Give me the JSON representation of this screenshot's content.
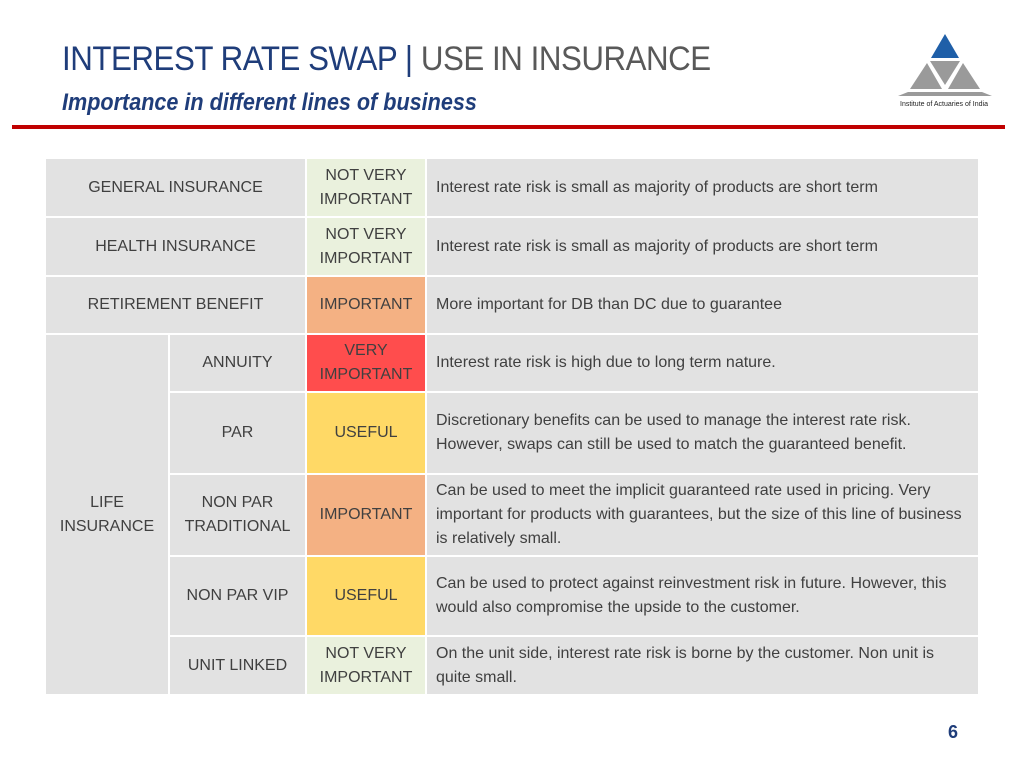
{
  "header": {
    "title_main": "INTEREST RATE SWAP | ",
    "title_sub": "USE IN INSURANCE",
    "subtitle": "Importance in different lines of business",
    "logo_caption": "Institute of Actuaries of India"
  },
  "colors": {
    "title_blue": "#1f3d7a",
    "rule_red": "#c00000",
    "not_very_important": "#eaf1dd",
    "important": "#f4b183",
    "very_important": "#ff4d4d",
    "useful": "#ffd966",
    "cell_grey": "#e2e2e2"
  },
  "table": {
    "general": {
      "lob": "GENERAL INSURANCE",
      "importance": "NOT VERY IMPORTANT",
      "comment": "Interest rate risk is small as majority of products are short term"
    },
    "health": {
      "lob": "HEALTH INSURANCE",
      "importance": "NOT VERY IMPORTANT",
      "comment": "Interest rate risk is small as majority of products are short term"
    },
    "retirement": {
      "lob": "RETIREMENT BENEFIT",
      "importance": "IMPORTANT",
      "comment": "More important for DB than DC due to guarantee"
    },
    "life": {
      "lob": "LIFE INSURANCE",
      "annuity": {
        "product": "ANNUITY",
        "importance": "VERY IMPORTANT",
        "comment": "Interest rate risk is high due to long term nature."
      },
      "par": {
        "product": "PAR",
        "importance": "USEFUL",
        "comment": "Discretionary benefits can be used to manage the interest rate risk. However, swaps can still be used to match the guaranteed benefit."
      },
      "nonpar_trad": {
        "product": "NON PAR TRADITIONAL",
        "importance": "IMPORTANT",
        "comment": "Can be used to meet the implicit guaranteed rate used in pricing. Very important for products with guarantees, but the size of this line of business is relatively small."
      },
      "nonpar_vip": {
        "product": "NON PAR VIP",
        "importance": "USEFUL",
        "comment": "Can be used to protect against reinvestment risk in future. However, this would also compromise the upside to the customer."
      },
      "unit_linked": {
        "product": "UNIT LINKED",
        "importance": "NOT VERY IMPORTANT",
        "comment": "On the unit side, interest rate risk is borne by the customer. Non unit is quite small."
      }
    }
  },
  "footer": {
    "page_number": "6"
  }
}
